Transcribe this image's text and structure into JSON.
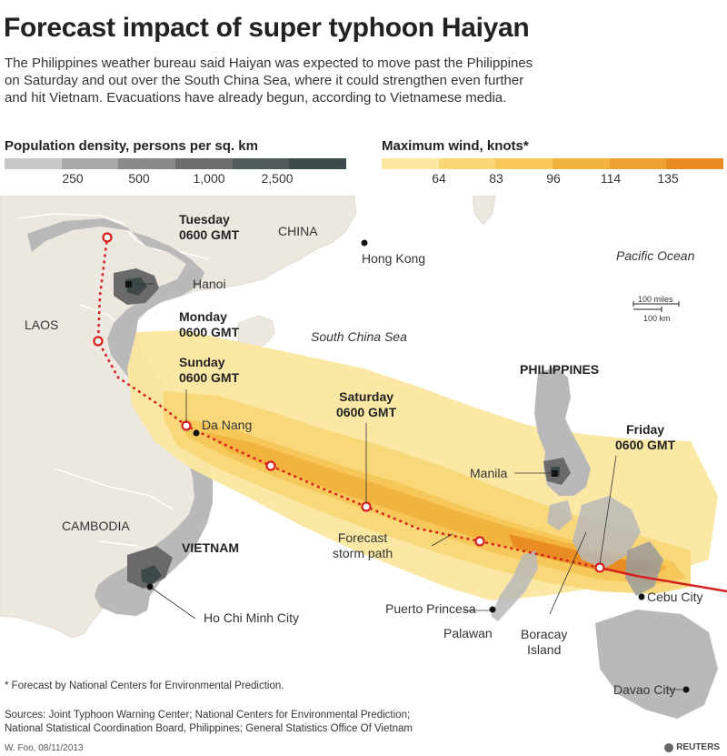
{
  "title": "Forecast impact of super typhoon Haiyan",
  "subtitle": "The Philippines weather bureau said Haiyan was expected to move past the Philippines on Saturday and out over the South China Sea, where it could strengthen even further and hit Vietnam. Evacuations have already begun, according to Vietnamese media.",
  "legend_population": {
    "title": "Population density, persons per sq. km",
    "ticks": [
      "250",
      "500",
      "1,000",
      "2,500"
    ],
    "colors": [
      "#c8c8c8",
      "#a8a8a8",
      "#8a8a8a",
      "#6c6c6c",
      "#505a5a",
      "#3a4a4a"
    ]
  },
  "legend_wind": {
    "title": "Maximum wind, knots*",
    "ticks": [
      "64",
      "83",
      "96",
      "114",
      "135"
    ],
    "colors": [
      "#fbe7a0",
      "#f9d777",
      "#f6c85a",
      "#f2b33f",
      "#eea131",
      "#e98c23"
    ]
  },
  "map_labels": {
    "china": "CHINA",
    "laos": "LAOS",
    "cambodia": "CAMBODIA",
    "vietnam": "VIETNAM",
    "philippines": "PHILIPPINES",
    "pacific": "Pacific Ocean",
    "scs": "South China Sea",
    "hanoi": "Hanoi",
    "hong_kong": "Hong Kong",
    "da_nang": "Da Nang",
    "hcmc": "Ho Chi Minh City",
    "manila": "Manila",
    "cebu": "Cebu City",
    "davao": "Davao City",
    "puerto_princesa": "Puerto Princesa",
    "palawan": "Palawan",
    "boracay_1": "Boracay",
    "boracay_2": "Island",
    "storm_path_1": "Forecast",
    "storm_path_2": "storm path",
    "tuesday_1": "Tuesday",
    "tuesday_2": "0600 GMT",
    "monday_1": "Monday",
    "monday_2": "0600 GMT",
    "sunday_1": "Sunday",
    "sunday_2": "0600 GMT",
    "saturday_1": "Saturday",
    "saturday_2": "0600 GMT",
    "friday_1": "Friday",
    "friday_2": "0600 GMT",
    "scale_miles": "100 miles",
    "scale_km": "100 km"
  },
  "footnote": "* Forecast by National Centers for Environmental Prediction.",
  "sources_1": "Sources: Joint Typhoon Warning Center; National Centers for Environmental Prediction;",
  "sources_2": "National Statistical Coordination Board, Philippines;  General Statistics Office Of Vietnam",
  "credit": "W. Foo, 08/11/2013",
  "brand": "REUTERS",
  "colors": {
    "sea": "#ffffff",
    "land": "#ece7df",
    "storm_track": "#d62020"
  }
}
